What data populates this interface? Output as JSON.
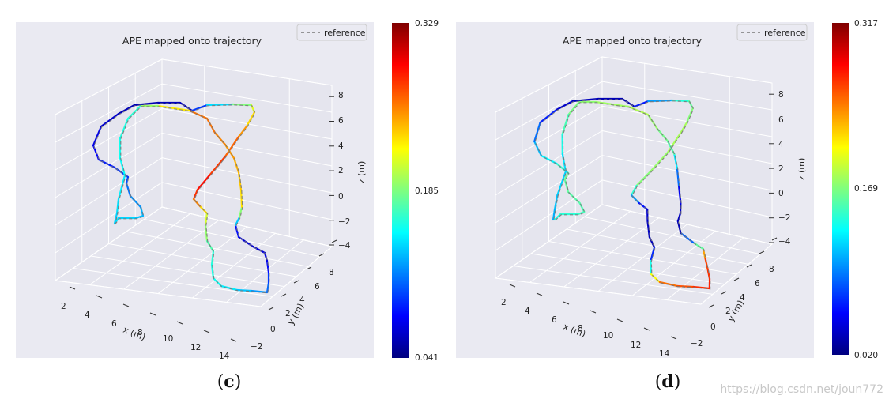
{
  "watermark": "https://blog.csdn.net/joun772",
  "panels": [
    {
      "caption_open": "(",
      "caption_letter": "c",
      "caption_close": ")",
      "colorbar_colors": [
        "#00007f",
        "#0000ff",
        "#007fff",
        "#00ffff",
        "#7fff7f",
        "#ffff00",
        "#ff7f00",
        "#ff0000",
        "#7f0000"
      ],
      "chart_data": {
        "type": "line",
        "projection": "3d",
        "title": "APE mapped onto trajectory",
        "legend": {
          "entries": [
            "reference"
          ],
          "placement": "top-right"
        },
        "axes": {
          "x": {
            "label": "x (m)",
            "ticks": [
              "2",
              "4",
              "6",
              "8",
              "10",
              "12",
              "14"
            ]
          },
          "y": {
            "label": "y (m)",
            "ticks": [
              "−2",
              "0",
              "2",
              "4",
              "6",
              "8"
            ]
          },
          "z": {
            "label": "z (m)",
            "ticks": [
              "−4",
              "−2",
              "0",
              "2",
              "4",
              "6",
              "8"
            ]
          }
        },
        "grid": true,
        "colorbar": {
          "min": "0.041",
          "mid": "0.185",
          "max": "0.329",
          "colormap": "jet"
        },
        "series": [
          {
            "name": "reference",
            "style": "dashed",
            "color": "#777777"
          }
        ],
        "trajectory_error_profile": [
          0.35,
          0.3,
          0.2,
          0.12,
          0.05,
          0.06,
          0.55,
          0.75,
          0.88,
          0.62,
          0.42,
          0.38,
          0.25,
          0.1,
          0.08,
          0.65,
          0.72,
          0.78,
          0.42,
          0.38,
          0.33
        ]
      }
    },
    {
      "caption_open": "(",
      "caption_letter": "d",
      "caption_close": ")",
      "colorbar_colors": [
        "#00007f",
        "#0000ff",
        "#007fff",
        "#00ffff",
        "#7fff7f",
        "#ffff00",
        "#ff7f00",
        "#ff0000",
        "#7f0000"
      ],
      "chart_data": {
        "type": "line",
        "projection": "3d",
        "title": "APE mapped onto trajectory",
        "legend": {
          "entries": [
            "reference"
          ],
          "placement": "top-right"
        },
        "axes": {
          "x": {
            "label": "x (m)",
            "ticks": [
              "2",
              "4",
              "6",
              "8",
              "10",
              "12",
              "14"
            ]
          },
          "y": {
            "label": "y (m)",
            "ticks": [
              "−2",
              "0",
              "2",
              "4",
              "6",
              "8"
            ]
          },
          "z": {
            "label": "z (m)",
            "ticks": [
              "−4",
              "−2",
              "0",
              "2",
              "4",
              "6",
              "8"
            ]
          }
        },
        "grid": true,
        "colorbar": {
          "min": "0.020",
          "mid": "0.169",
          "max": "0.317",
          "colormap": "jet"
        },
        "series": [
          {
            "name": "reference",
            "style": "dashed",
            "color": "#777777"
          }
        ],
        "trajectory_error_profile": [
          0.4,
          0.45,
          0.48,
          0.3,
          0.06,
          0.05,
          0.45,
          0.55,
          0.5,
          0.08,
          0.05,
          0.75,
          0.85,
          0.8,
          0.05,
          0.08,
          0.45,
          0.55,
          0.5,
          0.35,
          0.3
        ]
      }
    }
  ]
}
